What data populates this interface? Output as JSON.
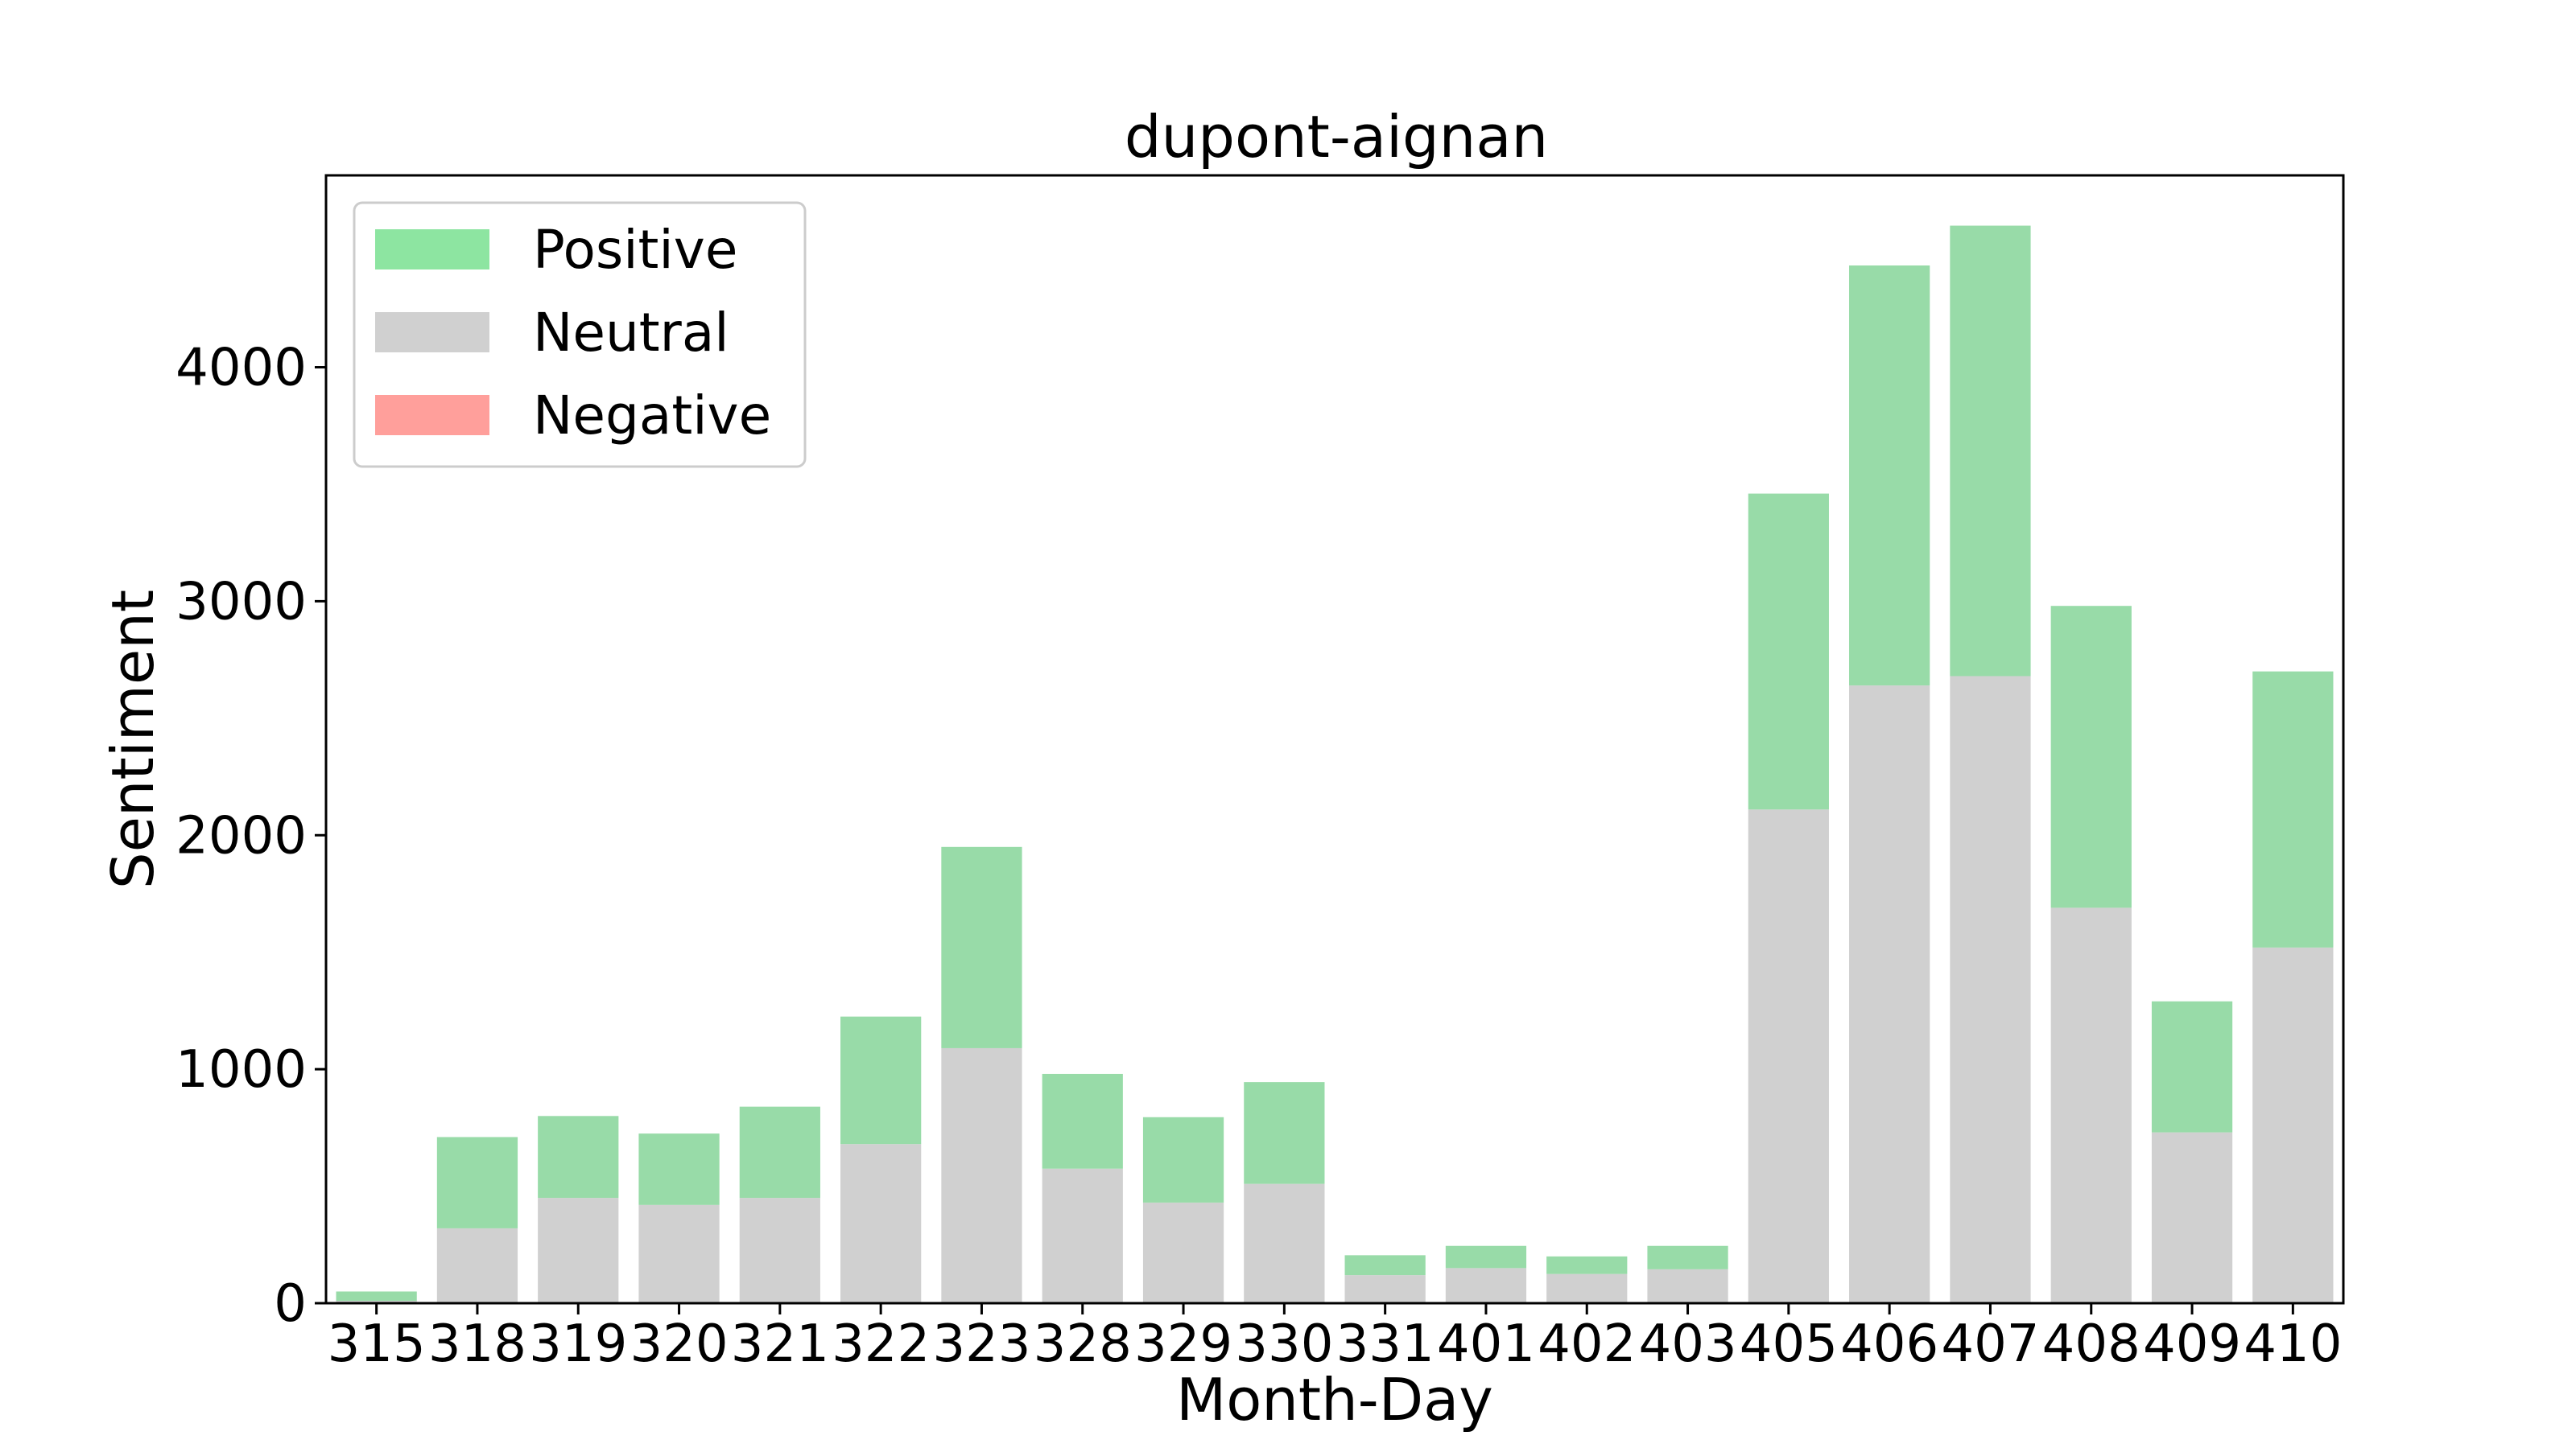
{
  "chart_data": {
    "type": "bar",
    "stacked": true,
    "title": "dupont-aignan",
    "xlabel": "Month-Day",
    "ylabel": "Sentiment",
    "categories": [
      "315",
      "318",
      "319",
      "320",
      "321",
      "322",
      "323",
      "328",
      "329",
      "330",
      "331",
      "401",
      "402",
      "403",
      "405",
      "406",
      "407",
      "408",
      "409",
      "410"
    ],
    "series": [
      {
        "name": "Negative",
        "color": "#ff9f9b",
        "values": [
          0,
          0,
          0,
          0,
          0,
          0,
          0,
          0,
          0,
          0,
          0,
          0,
          0,
          0,
          0,
          0,
          0,
          0,
          0,
          0
        ]
      },
      {
        "name": "Neutral",
        "color": "#d0d0d0",
        "values": [
          10,
          320,
          450,
          420,
          450,
          680,
          1090,
          575,
          430,
          510,
          120,
          150,
          125,
          145,
          2110,
          2640,
          2680,
          1690,
          730,
          1520
        ]
      },
      {
        "name": "Positive",
        "color": "#98dba8",
        "values": [
          40,
          390,
          350,
          305,
          390,
          545,
          860,
          405,
          365,
          435,
          85,
          95,
          75,
          100,
          1350,
          1795,
          1925,
          1290,
          560,
          1180
        ]
      }
    ],
    "ylim": [
      0,
      4820
    ],
    "yticks": [
      0,
      1000,
      2000,
      3000,
      4000
    ],
    "grid": false,
    "legend": {
      "position": "top-left",
      "entries": [
        {
          "label": "Positive",
          "color": "#8de5a1"
        },
        {
          "label": "Neutral",
          "color": "#d0d0d0"
        },
        {
          "label": "Negative",
          "color": "#ff9f9b"
        }
      ]
    }
  }
}
